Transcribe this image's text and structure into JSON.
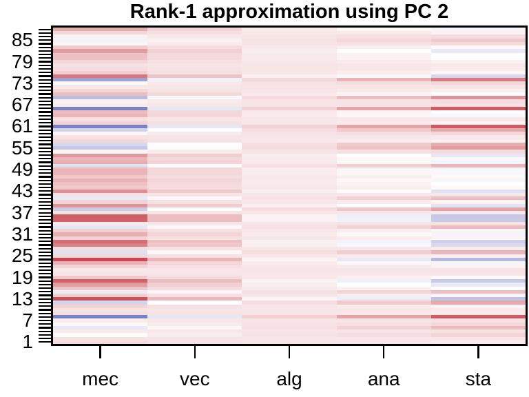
{
  "title": "Rank-1 approximation using PC 2",
  "chart_data": {
    "type": "heatmap",
    "title": "Rank-1 approximation using PC 2",
    "columns": [
      "mec",
      "vec",
      "alg",
      "ana",
      "sta"
    ],
    "n_rows": 88,
    "row_order": "row 1 at bottom, row 88 at top",
    "y_tick_labels": [
      "1",
      "7",
      "13",
      "19",
      "25",
      "31",
      "37",
      "43",
      "49",
      "55",
      "61",
      "67",
      "73",
      "79",
      "85"
    ],
    "y_label_rows": [
      1,
      7,
      13,
      19,
      25,
      31,
      37,
      43,
      49,
      55,
      61,
      67,
      73,
      79,
      85
    ],
    "minor_ticks": "one tick per row on y-axis",
    "value_model": "cell_value[row][col] = base + u[row] * v[col]  (rank-1 approximation)",
    "base": 0.14,
    "u": [
      0.05,
      0.02,
      -0.12,
      -0.02,
      -0.3,
      -0.1,
      -0.04,
      -1.05,
      0.04,
      0.02,
      0.1,
      -0.45,
      0.8,
      0.12,
      -0.28,
      0.18,
      0.4,
      0.72,
      0.15,
      0.0,
      -0.02,
      0.1,
      0.28,
      0.88,
      0.08,
      -0.36,
      0.05,
      0.55,
      0.66,
      0.1,
      0.3,
      0.12,
      -0.31,
      -0.02,
      0.72,
      0.74,
      0.02,
      -0.5,
      0.45,
      0.1,
      -0.3,
      0.02,
      0.48,
      0.15,
      0.2,
      0.28,
      0.15,
      0.26,
      0.26,
      -0.36,
      0.3,
      0.26,
      0.42,
      -0.08,
      -0.55,
      -0.42,
      0.08,
      0.02,
      -0.1,
      -0.45,
      -1.05,
      0.1,
      0.02,
      0.26,
      0.22,
      -1.05,
      -0.03,
      -0.06,
      -0.62,
      0.22,
      0.07,
      -0.01,
      -0.11,
      -0.8,
      0.6,
      0.12,
      0.05,
      0.02,
      0.09,
      0.2,
      0.2,
      0.4,
      0.15,
      -0.08,
      -0.22,
      -0.07,
      0.09,
      0.3
    ],
    "v": [
      1.0,
      0.3,
      -0.1,
      -0.34,
      -0.72
    ],
    "colormap": {
      "type": "diverging",
      "negative_max": "#6d74bd",
      "zero": "#ffffff",
      "positive_max": "#c84750",
      "range": [
        -1,
        1
      ]
    },
    "legend": "none",
    "grid": false,
    "border_color": "#000000"
  },
  "axes": {
    "x_labels": [
      "mec",
      "vec",
      "alg",
      "ana",
      "sta"
    ]
  }
}
